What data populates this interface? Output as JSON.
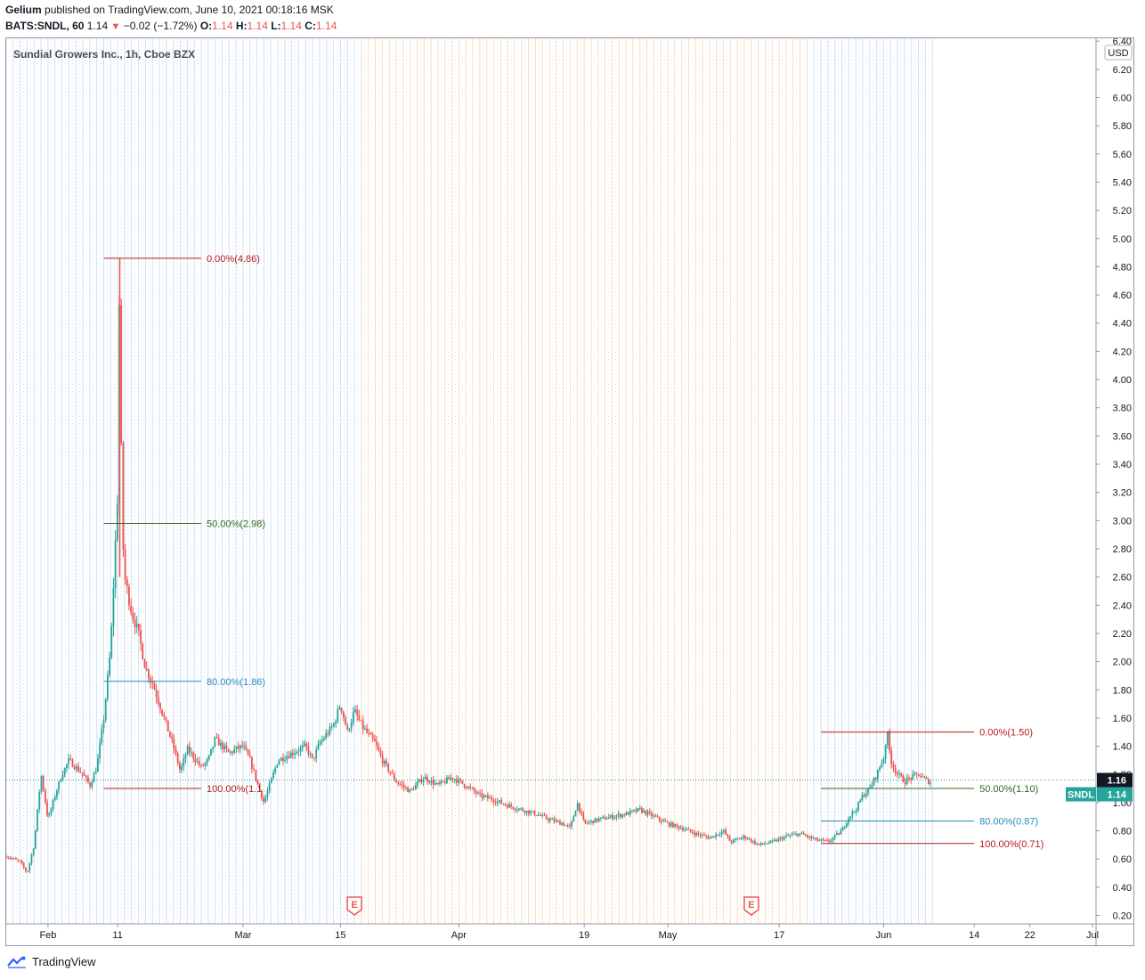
{
  "header": {
    "publisher": "Gelium",
    "published_text": "published on TradingView.com, June 10, 2021 00:18:16 MSK",
    "symbol": "BATS:SNDL, 60",
    "last": "1.14",
    "change": "−0.02 (−1.72%)",
    "ohlc": [
      {
        "k": "O:",
        "v": "1.14"
      },
      {
        "k": "H:",
        "v": "1.14"
      },
      {
        "k": "L:",
        "v": "1.14"
      },
      {
        "k": "C:",
        "v": "1.14"
      }
    ],
    "colors": {
      "down": "#ef5350",
      "up": "#26a69a"
    }
  },
  "footer": {
    "brand": "TradingView"
  },
  "chart_data": {
    "type": "candlestick",
    "title": "Sundial Growers Inc., 1h, Cboe BZX",
    "currency_label": "USD",
    "yticks": [
      "0.20",
      "0.40",
      "0.60",
      "0.80",
      "1.00",
      "1.20",
      "1.40",
      "1.60",
      "1.80",
      "2.00",
      "2.20",
      "2.40",
      "2.60",
      "2.80",
      "3.00",
      "3.20",
      "3.40",
      "3.60",
      "3.80",
      "4.00",
      "4.20",
      "4.40",
      "4.60",
      "4.80",
      "5.00",
      "5.20",
      "5.40",
      "5.60",
      "5.80",
      "6.00",
      "6.20",
      "6.40"
    ],
    "ylim": [
      0.14,
      6.42
    ],
    "xticks": [
      {
        "label": "Feb",
        "day": 0
      },
      {
        "label": "11",
        "day": 10
      },
      {
        "label": "Mar",
        "day": 28
      },
      {
        "label": "15",
        "day": 42
      },
      {
        "label": "Apr",
        "day": 59
      },
      {
        "label": "19",
        "day": 77
      },
      {
        "label": "May",
        "day": 89
      },
      {
        "label": "17",
        "day": 105
      },
      {
        "label": "Jun",
        "day": 120
      },
      {
        "label": "14",
        "day": 133
      },
      {
        "label": "22",
        "day": 141
      },
      {
        "label": "Jul",
        "day": 150
      }
    ],
    "xlim": [
      -6,
      150.5
    ],
    "price_path": [
      [
        -6,
        0.62
      ],
      [
        -4,
        0.58
      ],
      [
        -3,
        0.5
      ],
      [
        -2,
        0.7
      ],
      [
        -1,
        1.2
      ],
      [
        0,
        0.88
      ],
      [
        1,
        1.05
      ],
      [
        2,
        1.2
      ],
      [
        3,
        1.3
      ],
      [
        4,
        1.25
      ],
      [
        5,
        1.2
      ],
      [
        6,
        1.12
      ],
      [
        7,
        1.25
      ],
      [
        8,
        1.6
      ],
      [
        9,
        2.1
      ],
      [
        10,
        3.2
      ],
      [
        10.3,
        4.86
      ],
      [
        10.6,
        3.0
      ],
      [
        11,
        2.6
      ],
      [
        12,
        2.35
      ],
      [
        13,
        2.2
      ],
      [
        14,
        1.95
      ],
      [
        15,
        1.85
      ],
      [
        16,
        1.7
      ],
      [
        17,
        1.55
      ],
      [
        18,
        1.4
      ],
      [
        19,
        1.22
      ],
      [
        20,
        1.38
      ],
      [
        21,
        1.32
      ],
      [
        22,
        1.25
      ],
      [
        23,
        1.3
      ],
      [
        24,
        1.45
      ],
      [
        25,
        1.4
      ],
      [
        26,
        1.35
      ],
      [
        27,
        1.38
      ],
      [
        28,
        1.4
      ],
      [
        29,
        1.3
      ],
      [
        30,
        1.15
      ],
      [
        31,
        1.0
      ],
      [
        32,
        1.15
      ],
      [
        33,
        1.3
      ],
      [
        35,
        1.35
      ],
      [
        37,
        1.4
      ],
      [
        38,
        1.3
      ],
      [
        39,
        1.42
      ],
      [
        41,
        1.55
      ],
      [
        42,
        1.7
      ],
      [
        43,
        1.5
      ],
      [
        44,
        1.65
      ],
      [
        45,
        1.55
      ],
      [
        46,
        1.48
      ],
      [
        47,
        1.42
      ],
      [
        48,
        1.3
      ],
      [
        50,
        1.15
      ],
      [
        52,
        1.08
      ],
      [
        54,
        1.18
      ],
      [
        56,
        1.12
      ],
      [
        58,
        1.18
      ],
      [
        60,
        1.12
      ],
      [
        62,
        1.05
      ],
      [
        64,
        1.02
      ],
      [
        66,
        0.98
      ],
      [
        68,
        0.95
      ],
      [
        70,
        0.92
      ],
      [
        72,
        0.88
      ],
      [
        74,
        0.85
      ],
      [
        75,
        0.82
      ],
      [
        76,
        1.0
      ],
      [
        77,
        0.85
      ],
      [
        79,
        0.88
      ],
      [
        81,
        0.9
      ],
      [
        83,
        0.92
      ],
      [
        85,
        0.95
      ],
      [
        87,
        0.9
      ],
      [
        89,
        0.85
      ],
      [
        91,
        0.82
      ],
      [
        93,
        0.78
      ],
      [
        95,
        0.75
      ],
      [
        97,
        0.8
      ],
      [
        98,
        0.72
      ],
      [
        100,
        0.76
      ],
      [
        102,
        0.7
      ],
      [
        104,
        0.72
      ],
      [
        106,
        0.76
      ],
      [
        108,
        0.78
      ],
      [
        110,
        0.74
      ],
      [
        112,
        0.72
      ],
      [
        114,
        0.8
      ],
      [
        115,
        0.9
      ],
      [
        116,
        0.95
      ],
      [
        117,
        1.05
      ],
      [
        118,
        1.1
      ],
      [
        119,
        1.2
      ],
      [
        120,
        1.32
      ],
      [
        120.5,
        1.5
      ],
      [
        121,
        1.3
      ],
      [
        122,
        1.2
      ],
      [
        123,
        1.15
      ],
      [
        124,
        1.18
      ],
      [
        125,
        1.2
      ],
      [
        126,
        1.16
      ],
      [
        127,
        1.14
      ]
    ],
    "current_price": "1.16",
    "last_price": "1.14",
    "last_label": "SNDL",
    "fib_sets": [
      {
        "x1": 8,
        "x2": 22,
        "levels": [
          {
            "label": "0.00%(4.86)",
            "price": 4.86,
            "color": "#b71c1c"
          },
          {
            "label": "50.00%(2.98)",
            "price": 2.98,
            "color": "#33691e"
          },
          {
            "label": "80.00%(1.86)",
            "price": 1.86,
            "color": "#2a8cbf"
          },
          {
            "label": "100.00%(1.1",
            "price": 1.1,
            "color": "#b71c1c"
          }
        ]
      },
      {
        "x1": 111,
        "x2": 133,
        "levels": [
          {
            "label": "0.00%(1.50)",
            "price": 1.5,
            "color": "#b71c1c"
          },
          {
            "label": "50.00%(1.10)",
            "price": 1.1,
            "color": "#33691e"
          },
          {
            "label": "80.00%(0.87)",
            "price": 0.87,
            "color": "#2a8cbf"
          },
          {
            "label": "100.00%(0.71)",
            "price": 0.71,
            "color": "#b71c1c"
          }
        ]
      }
    ],
    "earnings": [
      {
        "label": "E",
        "day": 44
      },
      {
        "label": "E",
        "day": 101
      }
    ],
    "colors": {
      "up": "#26a69a",
      "down": "#ef5350",
      "price_line": "#26a69a"
    }
  }
}
